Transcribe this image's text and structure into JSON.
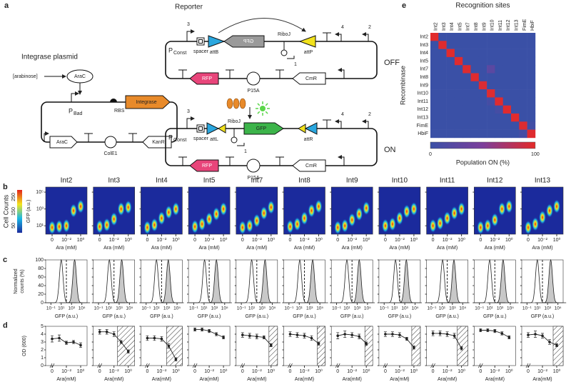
{
  "panel_a": {
    "label": "a",
    "plasmid": {
      "title": "Integrase plasmid",
      "inducer": "[arabinose]",
      "regulator": "AraC",
      "promoter": "P",
      "promoter_sub": "Bad",
      "rbs": "RBS",
      "gene": "Integrase",
      "parts": [
        "AraC",
        "ColE1",
        "KanR"
      ]
    },
    "reporter_title": "Reporter",
    "off": {
      "numbers": [
        "3",
        "4",
        "2"
      ],
      "promoter": "P",
      "promoter_sub": "Const",
      "spacer": "spacer",
      "site1": "attB",
      "gene": "GFP",
      "riboj": "RiboJ",
      "site2": "attP",
      "number1": "1",
      "parts": [
        "RFP",
        "P15A",
        "CmR"
      ],
      "state": "OFF"
    },
    "on": {
      "numbers": [
        "3",
        "4",
        "2"
      ],
      "promoter": "P",
      "promoter_sub": "Const",
      "spacer": "spacer",
      "site1": "attL",
      "gene": "GFP",
      "riboj": "RiboJ",
      "site2": "attR",
      "number1": "1",
      "parts": [
        "RFP",
        "P15A",
        "CmR"
      ],
      "state": "ON"
    }
  },
  "panel_b": {
    "label": "b",
    "colorbar": {
      "title": "Cell Counts",
      "ticks": [
        50,
        150,
        250
      ],
      "lim": [
        0,
        300
      ],
      "colors": [
        "#1b2a9c",
        "#19b8e6",
        "#f3e51d",
        "#e3211c"
      ]
    },
    "y_label": "GFP (a.u.)",
    "x_label": "Ara (mM)",
    "ylim": [
      0,
      5.6
    ],
    "yticks": [
      {
        "value": 1,
        "label": "10¹"
      },
      {
        "value": 3,
        "label": "10³"
      },
      {
        "value": 5,
        "label": "10⁵"
      }
    ],
    "xlim": [
      -4.6,
      0.6
    ],
    "xticks": [
      {
        "value": -4,
        "label": "0"
      },
      {
        "value": -2,
        "label": "10⁻²"
      },
      {
        "value": 0,
        "label": "10⁰"
      }
    ],
    "ara": [
      -4,
      -3,
      -2,
      -1,
      0
    ],
    "panels": [
      {
        "name": "Int2",
        "gfp": [
          0.8,
          0.9,
          1.0,
          2.8,
          3.3
        ]
      },
      {
        "name": "Int3",
        "gfp": [
          0.9,
          1.1,
          1.8,
          3.0,
          3.2
        ]
      },
      {
        "name": "Int4",
        "gfp": [
          0.8,
          1.1,
          1.9,
          2.6,
          3.0
        ]
      },
      {
        "name": "Int5",
        "gfp": [
          0.9,
          1.2,
          1.8,
          2.4,
          3.0
        ]
      },
      {
        "name": "Int7",
        "gfp": [
          0.8,
          1.0,
          1.6,
          2.5,
          3.2
        ]
      },
      {
        "name": "Int8",
        "gfp": [
          0.9,
          1.2,
          1.9,
          2.8,
          3.3
        ]
      },
      {
        "name": "Int9",
        "gfp": [
          0.8,
          1.0,
          1.7,
          2.4,
          3.1
        ]
      },
      {
        "name": "Int10",
        "gfp": [
          1.0,
          1.2,
          1.9,
          2.7,
          3.0
        ]
      },
      {
        "name": "Int11",
        "gfp": [
          1.0,
          1.3,
          1.9,
          2.5,
          3.0
        ]
      },
      {
        "name": "Int12",
        "gfp": [
          0.8,
          1.0,
          1.7,
          3.0,
          3.3
        ]
      },
      {
        "name": "Int13",
        "gfp": [
          0.8,
          1.2,
          2.0,
          2.8,
          3.3
        ]
      }
    ]
  },
  "panel_c": {
    "label": "c",
    "y_label": [
      "Normalized",
      "counts (%)"
    ],
    "x_label": "GFP (a.u.)",
    "ylim": [
      0,
      100
    ],
    "yticks": [
      0,
      20,
      40,
      60,
      80,
      100
    ],
    "xlim": [
      -1.6,
      5.6
    ],
    "xticks": [
      {
        "value": -1,
        "label": "10⁻¹"
      },
      {
        "value": 1,
        "label": "10¹"
      },
      {
        "value": 3,
        "label": "10³"
      },
      {
        "value": 5,
        "label": "10⁵"
      }
    ],
    "threshold": 2.0,
    "panels": [
      {
        "off": 1.0,
        "on": 3.6
      },
      {
        "off": 1.1,
        "on": 3.5
      },
      {
        "off": 1.0,
        "on": 3.3
      },
      {
        "off": 1.1,
        "on": 3.4
      },
      {
        "off": 1.0,
        "on": 3.6
      },
      {
        "off": 1.1,
        "on": 3.6
      },
      {
        "off": 1.0,
        "on": 3.4
      },
      {
        "off": 1.2,
        "on": 3.3
      },
      {
        "off": 1.1,
        "on": 3.3
      },
      {
        "off": 1.0,
        "on": 3.6
      },
      {
        "off": 1.0,
        "on": 3.6
      }
    ]
  },
  "panel_d": {
    "label": "d",
    "y_label": "OD (600)",
    "x_label": "Ara(mM)",
    "ylim": [
      0,
      5
    ],
    "yticks": [
      0,
      1,
      2,
      3,
      4,
      5
    ],
    "xlim": [
      -4.6,
      0.6
    ],
    "xticks": [
      {
        "value": -4,
        "label": "0"
      },
      {
        "value": -2,
        "label": "10⁻²"
      },
      {
        "value": 0,
        "label": "10⁰"
      }
    ],
    "ara": [
      -4,
      -3,
      -2,
      -1,
      0
    ],
    "panels": [
      {
        "od": [
          3.4,
          3.5,
          2.9,
          3.0,
          2.6
        ],
        "err": [
          0.4,
          0.4,
          0.2,
          0.2,
          0.3
        ],
        "hatch_from": null
      },
      {
        "od": [
          4.3,
          4.3,
          4.0,
          3.0,
          1.8
        ],
        "err": [
          0.3,
          0.3,
          0.3,
          0.2,
          0.2
        ],
        "hatch_from": -1.5
      },
      {
        "od": [
          3.5,
          3.5,
          3.4,
          2.5,
          0.8
        ],
        "err": [
          0.3,
          0.3,
          0.3,
          0.3,
          0.2
        ],
        "hatch_from": -1.3
      },
      {
        "od": [
          4.6,
          4.6,
          4.4,
          4.0,
          3.6
        ],
        "err": [
          0.2,
          0.2,
          0.2,
          0.2,
          0.2
        ],
        "hatch_from": null
      },
      {
        "od": [
          3.9,
          3.8,
          3.7,
          3.6,
          2.6
        ],
        "err": [
          0.3,
          0.3,
          0.3,
          0.2,
          0.2
        ],
        "hatch_from": -0.3
      },
      {
        "od": [
          4.0,
          3.9,
          3.8,
          3.5,
          2.8
        ],
        "err": [
          0.3,
          0.3,
          0.3,
          0.3,
          0.2
        ],
        "hatch_from": -0.2
      },
      {
        "od": [
          3.8,
          4.0,
          3.9,
          3.7,
          2.8
        ],
        "err": [
          0.4,
          0.4,
          0.3,
          0.3,
          0.2
        ],
        "hatch_from": -0.2
      },
      {
        "od": [
          4.0,
          4.0,
          3.9,
          3.4,
          2.3
        ],
        "err": [
          0.3,
          0.3,
          0.3,
          0.2,
          0.2
        ],
        "hatch_from": -0.3
      },
      {
        "od": [
          4.1,
          4.1,
          4.0,
          3.8,
          2.2
        ],
        "err": [
          0.3,
          0.3,
          0.3,
          0.3,
          0.2
        ],
        "hatch_from": -0.6
      },
      {
        "od": [
          4.5,
          4.5,
          4.4,
          4.1,
          3.6
        ],
        "err": [
          0.2,
          0.2,
          0.2,
          0.2,
          0.2
        ],
        "hatch_from": null
      },
      {
        "od": [
          3.9,
          4.0,
          3.8,
          3.0,
          2.6
        ],
        "err": [
          0.3,
          0.4,
          0.3,
          0.3,
          0.2
        ],
        "hatch_from": -0.5
      }
    ]
  },
  "panel_e": {
    "label": "e",
    "title": "Recognition sites",
    "y_label": "Recombinase",
    "columns": [
      "Int2",
      "Int3",
      "Int4",
      "Int5",
      "Int7",
      "Int8",
      "Int9",
      "Int10",
      "Int11",
      "Int12",
      "Int13",
      "FimE",
      "HbiF"
    ],
    "rows": [
      "Int2",
      "Int3",
      "Int4",
      "Int5",
      "Int7",
      "Int8",
      "Int9",
      "Int10",
      "Int11",
      "Int12",
      "Int13",
      "FimE",
      "HbiF"
    ],
    "matrix": [
      [
        98,
        0,
        0,
        0,
        0,
        0,
        0,
        0,
        0,
        0,
        0,
        0,
        0
      ],
      [
        0,
        97,
        0,
        0,
        0,
        0,
        0,
        0,
        0,
        0,
        0,
        0,
        0
      ],
      [
        0,
        0,
        98,
        0,
        0,
        0,
        0,
        0,
        0,
        0,
        0,
        0,
        0
      ],
      [
        0,
        0,
        0,
        97,
        0,
        0,
        0,
        0,
        0,
        0,
        0,
        0,
        0
      ],
      [
        0,
        0,
        0,
        0,
        96,
        0,
        0,
        25,
        0,
        0,
        0,
        0,
        0
      ],
      [
        0,
        0,
        0,
        0,
        0,
        97,
        0,
        0,
        0,
        0,
        0,
        0,
        0
      ],
      [
        0,
        0,
        0,
        0,
        0,
        0,
        95,
        0,
        0,
        0,
        0,
        0,
        0
      ],
      [
        0,
        0,
        0,
        0,
        0,
        0,
        0,
        96,
        0,
        0,
        0,
        0,
        0
      ],
      [
        0,
        0,
        0,
        0,
        0,
        0,
        0,
        8,
        97,
        0,
        0,
        0,
        0
      ],
      [
        0,
        0,
        0,
        0,
        0,
        0,
        0,
        0,
        8,
        97,
        0,
        0,
        0
      ],
      [
        0,
        0,
        0,
        0,
        0,
        0,
        0,
        0,
        0,
        0,
        98,
        0,
        0
      ],
      [
        0,
        0,
        0,
        0,
        0,
        0,
        0,
        0,
        0,
        0,
        0,
        96,
        5
      ],
      [
        0,
        0,
        0,
        0,
        0,
        0,
        0,
        0,
        0,
        0,
        0,
        8,
        97
      ]
    ],
    "colorbar": {
      "title": "Population ON (%)",
      "ticks": [
        0,
        100
      ],
      "colors": [
        "#3a50a6",
        "#7c3f9b",
        "#e52a28"
      ]
    }
  }
}
